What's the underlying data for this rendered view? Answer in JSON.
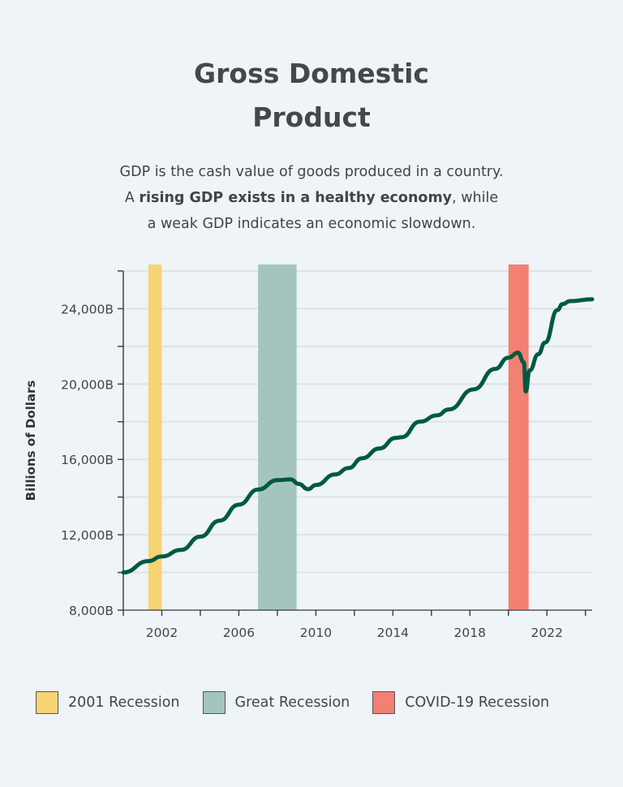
{
  "header": {
    "title_line1": "Gross Domestic",
    "title_line2": "Product",
    "subtitle_line1": "GDP is the cash value of goods produced in a country.",
    "subtitle_line2_pre": "A ",
    "subtitle_line2_bold": "rising GDP exists in a healthy economy",
    "subtitle_line2_post": ", while",
    "subtitle_line3": "a weak GDP indicates an economic slowdown."
  },
  "chart_data": {
    "type": "line",
    "title": "Gross Domestic Product",
    "xlabel": "",
    "ylabel": "Billions of Dollars",
    "xlim": [
      2000,
      2024.35
    ],
    "ylim": [
      8000,
      26000
    ],
    "grid": true,
    "x_tick_labels": [
      "2002",
      "2006",
      "2010",
      "2014",
      "2018",
      "2022"
    ],
    "x_ticks": [
      2000,
      2002,
      2004,
      2006,
      2008,
      2010,
      2012,
      2014,
      2016,
      2018,
      2020,
      2022,
      2024
    ],
    "y_tick_labels": [
      "8,000B",
      "12,000B",
      "16,000B",
      "20,000B",
      "24,000B"
    ],
    "y_ticks": [
      8000,
      10000,
      12000,
      14000,
      16000,
      18000,
      20000,
      22000,
      24000,
      26000
    ],
    "line_color": "#005a40",
    "series": [
      {
        "x": [
          2000,
          2001.3,
          2002,
          2003,
          2004,
          2005,
          2006,
          2007,
          2008,
          2008.7,
          2009.1,
          2009.6,
          2010,
          2011,
          2011.7,
          2012.4,
          2013.3,
          2014.15,
          2014.45,
          2015.4,
          2016.3,
          2016.9,
          2018.2,
          2019.3,
          2020.0,
          2020.5,
          2020.8,
          2020.9,
          2021.1,
          2021.55,
          2021.9,
          2022.55,
          2022.8,
          2023.2,
          2024.35
        ],
        "y": [
          10000,
          10600,
          10850,
          11200,
          11900,
          12750,
          13600,
          14400,
          14900,
          14940,
          14700,
          14420,
          14640,
          15200,
          15540,
          16060,
          16580,
          17140,
          17180,
          18000,
          18340,
          18650,
          19720,
          20800,
          21400,
          21660,
          21150,
          19600,
          20720,
          21580,
          22200,
          23930,
          24240,
          24400,
          24500
        ]
      }
    ],
    "bands": [
      {
        "name": "2001 Recession",
        "start": 2001.3,
        "end": 2002.0,
        "color": "#f6d474"
      },
      {
        "name": "Great Recession",
        "start": 2007.0,
        "end": 2009.0,
        "color": "#a3c5be"
      },
      {
        "name": "COVID-19 Recession",
        "start": 2020.0,
        "end": 2021.05,
        "color": "#f28073"
      }
    ],
    "legend": "bottom"
  }
}
